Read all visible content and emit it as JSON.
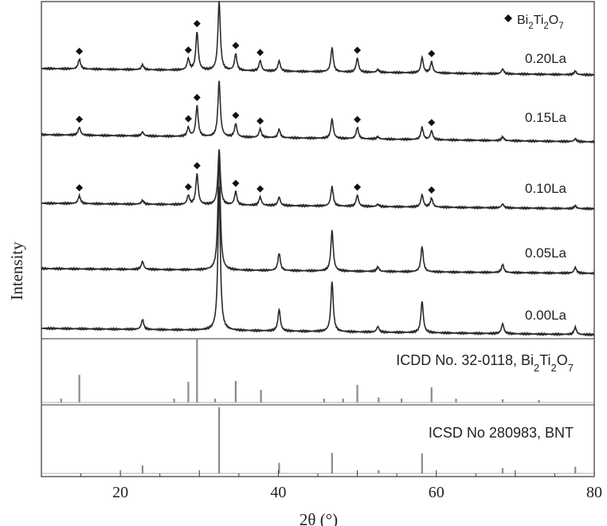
{
  "chart_data": {
    "type": "line",
    "xlabel": "2θ (°)",
    "ylabel": "Intensity",
    "xlim": [
      10,
      80
    ],
    "xticks": [
      20,
      40,
      60,
      80
    ],
    "grid": false,
    "legend": {
      "marker": "diamond",
      "text_parts": [
        "Bi",
        "2",
        "Ti",
        "2",
        "O",
        "7"
      ],
      "position": "top-right"
    },
    "series": [
      {
        "name": "0.20La",
        "has_impurity": true
      },
      {
        "name": "0.15La",
        "has_impurity": true
      },
      {
        "name": "0.10La",
        "has_impurity": true
      },
      {
        "name": "0.05La",
        "has_impurity": false
      },
      {
        "name": "0.00La",
        "has_impurity": false
      }
    ],
    "bnt_peaks": [
      {
        "x": 22.8,
        "h": 0.07
      },
      {
        "x": 32.5,
        "h": 1.0
      },
      {
        "x": 40.1,
        "h": 0.15
      },
      {
        "x": 46.8,
        "h": 0.35
      },
      {
        "x": 52.6,
        "h": 0.04
      },
      {
        "x": 58.2,
        "h": 0.22
      },
      {
        "x": 68.4,
        "h": 0.07
      },
      {
        "x": 77.6,
        "h": 0.05
      }
    ],
    "impurity_peaks": [
      {
        "x": 14.8,
        "h": 0.14
      },
      {
        "x": 28.6,
        "h": 0.16
      },
      {
        "x": 29.7,
        "h": 0.55
      },
      {
        "x": 34.6,
        "h": 0.24
      },
      {
        "x": 37.7,
        "h": 0.15
      },
      {
        "x": 50.0,
        "h": 0.2
      },
      {
        "x": 59.4,
        "h": 0.16
      }
    ],
    "marker_positions": [
      14.8,
      28.6,
      29.7,
      34.6,
      37.7,
      50.0,
      59.4
    ],
    "ref_patterns": [
      {
        "label_parts": [
          "ICDD No. 32-0118, Bi",
          "2",
          "Ti",
          "2",
          "O",
          "7"
        ],
        "sticks": [
          {
            "x": 12.5,
            "h": 0.06
          },
          {
            "x": 14.8,
            "h": 0.44
          },
          {
            "x": 26.8,
            "h": 0.06
          },
          {
            "x": 28.6,
            "h": 0.33
          },
          {
            "x": 29.7,
            "h": 1.0
          },
          {
            "x": 32.0,
            "h": 0.06
          },
          {
            "x": 34.6,
            "h": 0.34
          },
          {
            "x": 37.8,
            "h": 0.2
          },
          {
            "x": 45.8,
            "h": 0.06
          },
          {
            "x": 48.2,
            "h": 0.06
          },
          {
            "x": 50.0,
            "h": 0.28
          },
          {
            "x": 52.7,
            "h": 0.08
          },
          {
            "x": 55.6,
            "h": 0.06
          },
          {
            "x": 59.4,
            "h": 0.24
          },
          {
            "x": 62.5,
            "h": 0.06
          },
          {
            "x": 68.4,
            "h": 0.05
          },
          {
            "x": 73.0,
            "h": 0.04
          }
        ]
      },
      {
        "label_parts": [
          "ICSD No 280983, BNT"
        ],
        "sticks": [
          {
            "x": 22.8,
            "h": 0.12
          },
          {
            "x": 32.5,
            "h": 1.0
          },
          {
            "x": 40.1,
            "h": 0.16
          },
          {
            "x": 46.8,
            "h": 0.31
          },
          {
            "x": 52.7,
            "h": 0.05
          },
          {
            "x": 58.2,
            "h": 0.3
          },
          {
            "x": 68.4,
            "h": 0.08
          },
          {
            "x": 77.6,
            "h": 0.1
          }
        ]
      }
    ]
  }
}
